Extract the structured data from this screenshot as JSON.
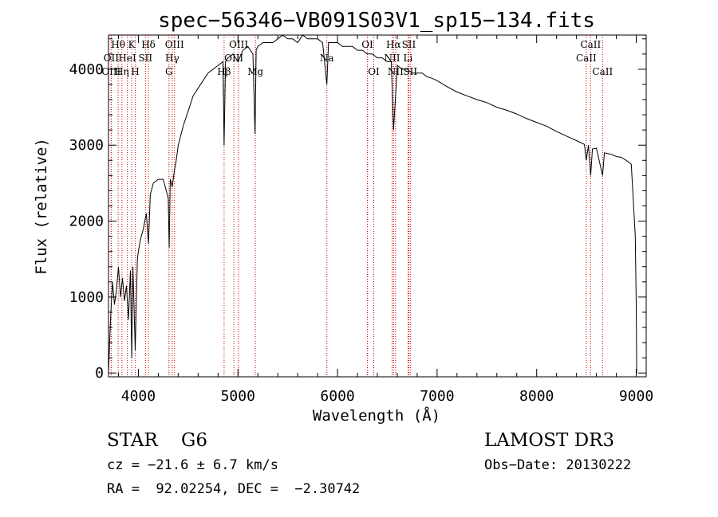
{
  "chart_data": {
    "type": "line",
    "title": "spec−56346−VB091S03V1_sp15−134.fits",
    "xlabel": "Wavelength (Å)",
    "ylabel": "Flux (relative)",
    "xlim": [
      3700,
      9100
    ],
    "ylim": [
      -50,
      4450
    ],
    "xticks": [
      4000,
      5000,
      6000,
      7000,
      8000,
      9000
    ],
    "yticks": [
      0,
      1000,
      2000,
      3000,
      4000
    ],
    "grid": false,
    "series": [
      {
        "name": "flux",
        "color": "#000000",
        "x": [
          3700,
          3720,
          3740,
          3760,
          3780,
          3800,
          3820,
          3840,
          3860,
          3880,
          3900,
          3920,
          3933,
          3945,
          3968,
          3990,
          4000,
          4020,
          4050,
          4080,
          4101,
          4120,
          4150,
          4200,
          4250,
          4280,
          4300,
          4310,
          4320,
          4340,
          4360,
          4380,
          4400,
          4450,
          4500,
          4550,
          4600,
          4650,
          4700,
          4750,
          4800,
          4850,
          4861,
          4875,
          4900,
          4950,
          5000,
          5050,
          5100,
          5150,
          5172,
          5183,
          5200,
          5250,
          5300,
          5350,
          5400,
          5450,
          5500,
          5550,
          5600,
          5650,
          5700,
          5750,
          5800,
          5850,
          5893,
          5910,
          5950,
          6000,
          6050,
          6100,
          6150,
          6200,
          6250,
          6300,
          6350,
          6400,
          6450,
          6500,
          6540,
          6563,
          6585,
          6600,
          6650,
          6700,
          6750,
          6800,
          6850,
          6900,
          6950,
          7000,
          7100,
          7200,
          7300,
          7400,
          7500,
          7600,
          7700,
          7800,
          7900,
          8000,
          8100,
          8200,
          8300,
          8400,
          8480,
          8498,
          8520,
          8542,
          8560,
          8600,
          8662,
          8680,
          8750,
          8800,
          8850,
          8900,
          8950,
          8990,
          9000,
          9005
        ],
        "y": [
          0,
          700,
          1200,
          900,
          1100,
          1400,
          1000,
          1250,
          950,
          1150,
          700,
          1350,
          200,
          1400,
          300,
          1500,
          1600,
          1750,
          1900,
          2100,
          1700,
          2350,
          2500,
          2550,
          2550,
          2400,
          2300,
          1650,
          2550,
          2450,
          2650,
          2800,
          3000,
          3250,
          3450,
          3650,
          3750,
          3850,
          3950,
          4000,
          4050,
          4100,
          3000,
          4100,
          4150,
          4200,
          4100,
          4250,
          4300,
          4200,
          3150,
          4250,
          4300,
          4350,
          4350,
          4350,
          4400,
          4450,
          4400,
          4400,
          4350,
          4450,
          4400,
          4400,
          4400,
          4350,
          3800,
          4350,
          4350,
          4350,
          4300,
          4300,
          4300,
          4250,
          4250,
          4200,
          4200,
          4150,
          4150,
          4100,
          4100,
          3200,
          3700,
          4050,
          4000,
          4000,
          3950,
          3950,
          3950,
          3900,
          3880,
          3850,
          3770,
          3700,
          3650,
          3600,
          3560,
          3500,
          3460,
          3410,
          3350,
          3300,
          3250,
          3180,
          3120,
          3060,
          3010,
          2800,
          3000,
          2600,
          2950,
          2960,
          2600,
          2900,
          2880,
          2850,
          2840,
          2800,
          2750,
          1800,
          900,
          0
        ]
      }
    ],
    "lines": [
      {
        "label": "Hθ",
        "x": 3797,
        "row": 0
      },
      {
        "label": "OII",
        "x": 3727,
        "row": 1
      },
      {
        "label": "OIII",
        "x": 3727,
        "row": 2
      },
      {
        "label": "K",
        "x": 3933,
        "row": 0
      },
      {
        "label": "HeI",
        "x": 3889,
        "row": 1
      },
      {
        "label": "Hη",
        "x": 3835,
        "row": 2
      },
      {
        "label": "Hδ",
        "x": 4101,
        "row": 0
      },
      {
        "label": "SII",
        "x": 4071,
        "row": 1
      },
      {
        "label": "H",
        "x": 3968,
        "row": 2
      },
      {
        "label": "OIII",
        "x": 4363,
        "row": 0
      },
      {
        "label": "Hγ",
        "x": 4340,
        "row": 1
      },
      {
        "label": "G",
        "x": 4307,
        "row": 2
      },
      {
        "label": "OIII",
        "x": 5007,
        "row": 0
      },
      {
        "label": "OIII",
        "x": 4959,
        "row": 1
      },
      {
        "label": "Hβ",
        "x": 4861,
        "row": 2
      },
      {
        "label": "Mg",
        "x": 5175,
        "row": 2
      },
      {
        "label": "Na",
        "x": 5893,
        "row": 1
      },
      {
        "label": "OI",
        "x": 6300,
        "row": 0
      },
      {
        "label": "OI",
        "x": 6364,
        "row": 2
      },
      {
        "label": "Hα",
        "x": 6563,
        "row": 0
      },
      {
        "label": "NII",
        "x": 6548,
        "row": 1
      },
      {
        "label": "NII",
        "x": 6583,
        "row": 2
      },
      {
        "label": "SII",
        "x": 6716,
        "row": 0
      },
      {
        "label": "Li",
        "x": 6708,
        "row": 1
      },
      {
        "label": "SII",
        "x": 6731,
        "row": 2
      },
      {
        "label": "CaII",
        "x": 8542,
        "row": 0
      },
      {
        "label": "CaII",
        "x": 8498,
        "row": 1
      },
      {
        "label": "CaII",
        "x": 8662,
        "row": 2
      }
    ]
  },
  "info": {
    "object": "STAR    G6",
    "survey": "LAMOST DR3",
    "redshift": "cz = −21.6 ± 6.7 km/s",
    "obs_date": "Obs−Date: 20130222",
    "coords": "RA =  92.02254, DEC =  −2.30742"
  }
}
